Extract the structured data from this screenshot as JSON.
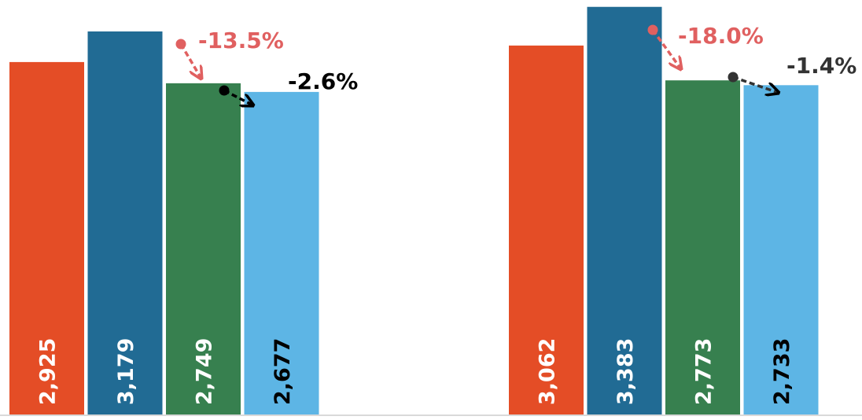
{
  "chart_data": {
    "type": "bar",
    "categories": [
      null,
      null
    ],
    "series": [
      {
        "color": "#e44d26",
        "label_color": "#ffffff",
        "values": [
          2925,
          3062
        ],
        "value_labels": [
          "2,925",
          "3,062"
        ]
      },
      {
        "color": "#216b94",
        "label_color": "#ffffff",
        "values": [
          3179,
          3383
        ],
        "value_labels": [
          "3,179",
          "3,383"
        ]
      },
      {
        "color": "#37804f",
        "label_color": "#ffffff",
        "values": [
          2749,
          2773
        ],
        "value_labels": [
          "2,749",
          "2,773"
        ]
      },
      {
        "color": "#5db5e5",
        "label_color": "#000000",
        "values": [
          2677,
          2733
        ],
        "value_labels": [
          "2,677",
          "2,733"
        ]
      }
    ],
    "ylim": [
      0,
      3440
    ],
    "annotations": [
      {
        "text": "-13.5%",
        "color": "#e06060"
      },
      {
        "text": "-2.6%",
        "color": "#000000"
      },
      {
        "text": "-18.0%",
        "color": "#e06060"
      },
      {
        "text": "-1.4%",
        "color": "#333333"
      }
    ]
  }
}
